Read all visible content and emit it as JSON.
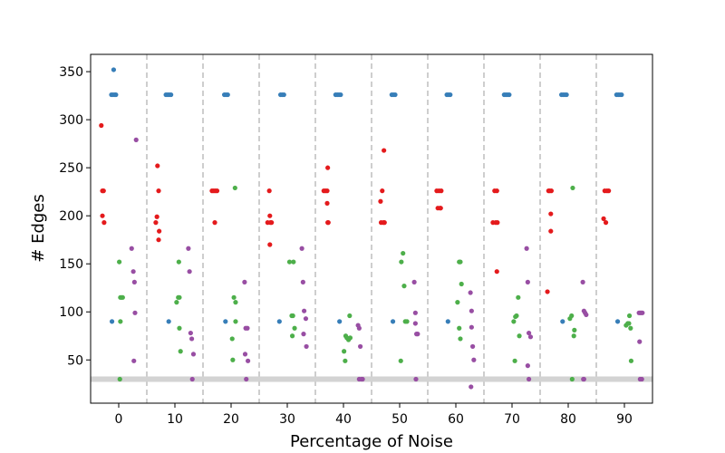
{
  "chart_data": {
    "type": "scatter",
    "title": "",
    "xlabel": "Percentage of Noise",
    "ylabel": "# Edges",
    "xlim": [
      -5,
      95
    ],
    "ylim": [
      5,
      368
    ],
    "x_ticks": [
      0,
      10,
      20,
      30,
      40,
      50,
      60,
      70,
      80,
      90
    ],
    "y_ticks": [
      50,
      100,
      150,
      200,
      250,
      300,
      350
    ],
    "group_separators": [
      5,
      15,
      25,
      35,
      45,
      55,
      65,
      75,
      85
    ],
    "reference_line_y": 30,
    "grid": false,
    "legend": "none",
    "series": [
      {
        "color": "#377eb8",
        "points": [
          [
            -1.3,
            326
          ],
          [
            -1,
            326
          ],
          [
            -0.9,
            352
          ],
          [
            -0.7,
            326
          ],
          [
            -0.5,
            326
          ],
          [
            -1.2,
            90
          ],
          [
            8.4,
            326
          ],
          [
            8.7,
            326
          ],
          [
            9.0,
            326
          ],
          [
            9.3,
            326
          ],
          [
            8.9,
            90
          ],
          [
            18.8,
            326
          ],
          [
            19.1,
            326
          ],
          [
            19.4,
            326
          ],
          [
            19.0,
            90
          ],
          [
            28.8,
            326
          ],
          [
            29.1,
            326
          ],
          [
            29.4,
            326
          ],
          [
            28.6,
            90
          ],
          [
            38.6,
            326
          ],
          [
            38.9,
            326
          ],
          [
            39.2,
            326
          ],
          [
            39.5,
            326
          ],
          [
            39.3,
            90
          ],
          [
            48.6,
            326
          ],
          [
            48.9,
            326
          ],
          [
            49.2,
            326
          ],
          [
            48.8,
            90
          ],
          [
            58.4,
            326
          ],
          [
            58.7,
            326
          ],
          [
            59.0,
            326
          ],
          [
            58.6,
            90
          ],
          [
            68.6,
            326
          ],
          [
            68.9,
            326
          ],
          [
            69.2,
            326
          ],
          [
            69.5,
            326
          ],
          [
            78.8,
            326
          ],
          [
            79.1,
            326
          ],
          [
            79.4,
            326
          ],
          [
            79.7,
            326
          ],
          [
            79.0,
            90
          ],
          [
            88.6,
            326
          ],
          [
            88.9,
            326
          ],
          [
            89.2,
            326
          ],
          [
            89.5,
            326
          ],
          [
            88.8,
            90
          ]
        ]
      },
      {
        "color": "#e41a1c",
        "points": [
          [
            -3.1,
            294
          ],
          [
            -2.9,
            226
          ],
          [
            -2.7,
            226
          ],
          [
            -2.9,
            200
          ],
          [
            -2.6,
            193
          ],
          [
            6.6,
            193
          ],
          [
            6.8,
            199
          ],
          [
            6.9,
            252
          ],
          [
            7.1,
            226
          ],
          [
            7.2,
            184
          ],
          [
            7.1,
            175
          ],
          [
            16.6,
            226
          ],
          [
            16.9,
            226
          ],
          [
            17.2,
            226
          ],
          [
            17.5,
            226
          ],
          [
            17.1,
            193
          ],
          [
            26.5,
            193
          ],
          [
            26.8,
            226
          ],
          [
            26.9,
            200
          ],
          [
            27.0,
            193
          ],
          [
            27.2,
            193
          ],
          [
            26.9,
            170
          ],
          [
            36.5,
            226
          ],
          [
            36.8,
            226
          ],
          [
            37.1,
            226
          ],
          [
            37.1,
            213
          ],
          [
            37.3,
            193
          ],
          [
            37.2,
            193
          ],
          [
            37.2,
            250
          ],
          [
            46.6,
            215
          ],
          [
            46.7,
            193
          ],
          [
            46.9,
            226
          ],
          [
            47.1,
            193
          ],
          [
            47.3,
            193
          ],
          [
            47.2,
            268
          ],
          [
            56.6,
            226
          ],
          [
            56.8,
            208
          ],
          [
            57.0,
            226
          ],
          [
            57.2,
            208
          ],
          [
            57.4,
            226
          ],
          [
            57.3,
            208
          ],
          [
            66.6,
            193
          ],
          [
            66.9,
            226
          ],
          [
            67.1,
            193
          ],
          [
            67.3,
            226
          ],
          [
            67.4,
            193
          ],
          [
            67.3,
            142
          ],
          [
            76.3,
            121
          ],
          [
            76.5,
            226
          ],
          [
            76.7,
            226
          ],
          [
            76.9,
            202
          ],
          [
            77.0,
            226
          ],
          [
            76.9,
            184
          ],
          [
            86.3,
            197
          ],
          [
            86.5,
            226
          ],
          [
            86.7,
            193
          ],
          [
            86.9,
            226
          ],
          [
            87.2,
            226
          ]
        ]
      },
      {
        "color": "#4daf4a",
        "points": [
          [
            0.1,
            152
          ],
          [
            0.3,
            115
          ],
          [
            0.5,
            115
          ],
          [
            0.7,
            115
          ],
          [
            0.3,
            90
          ],
          [
            0.2,
            30
          ],
          [
            10.3,
            110
          ],
          [
            10.6,
            115
          ],
          [
            10.8,
            115
          ],
          [
            10.7,
            152
          ],
          [
            10.8,
            83
          ],
          [
            11.0,
            59
          ],
          [
            20.3,
            50
          ],
          [
            20.5,
            115
          ],
          [
            20.8,
            110
          ],
          [
            20.7,
            229
          ],
          [
            20.2,
            72
          ],
          [
            20.8,
            90
          ],
          [
            30.4,
            152
          ],
          [
            30.8,
            96
          ],
          [
            31.0,
            96
          ],
          [
            31.1,
            152
          ],
          [
            31.3,
            83
          ],
          [
            30.9,
            75
          ],
          [
            40.1,
            59
          ],
          [
            40.4,
            75
          ],
          [
            40.6,
            73
          ],
          [
            40.9,
            71
          ],
          [
            41.1,
            96
          ],
          [
            40.3,
            49
          ],
          [
            41.2,
            73
          ],
          [
            50.3,
            152
          ],
          [
            50.6,
            161
          ],
          [
            50.8,
            127
          ],
          [
            51.0,
            90
          ],
          [
            51.3,
            90
          ],
          [
            50.2,
            49
          ],
          [
            60.3,
            110
          ],
          [
            60.6,
            152
          ],
          [
            60.8,
            152
          ],
          [
            61.0,
            129
          ],
          [
            60.8,
            72
          ],
          [
            60.6,
            83
          ],
          [
            70.3,
            90
          ],
          [
            70.6,
            95
          ],
          [
            70.8,
            96
          ],
          [
            71.1,
            115
          ],
          [
            71.3,
            75
          ],
          [
            70.5,
            49
          ],
          [
            80.3,
            93
          ],
          [
            80.6,
            96
          ],
          [
            80.8,
            229
          ],
          [
            81.1,
            81
          ],
          [
            81.0,
            75
          ],
          [
            80.7,
            30
          ],
          [
            90.3,
            86
          ],
          [
            90.6,
            88
          ],
          [
            90.9,
            96
          ],
          [
            91.1,
            83
          ],
          [
            91.2,
            49
          ],
          [
            90.8,
            88
          ]
        ]
      },
      {
        "color": "#984ea3",
        "points": [
          [
            2.3,
            166
          ],
          [
            2.6,
            142
          ],
          [
            2.8,
            131
          ],
          [
            3.1,
            279
          ],
          [
            2.9,
            99
          ],
          [
            2.7,
            49
          ],
          [
            12.4,
            166
          ],
          [
            12.6,
            142
          ],
          [
            12.8,
            78
          ],
          [
            13.0,
            72
          ],
          [
            13.3,
            56
          ],
          [
            13.1,
            30
          ],
          [
            22.4,
            131
          ],
          [
            22.6,
            83
          ],
          [
            22.9,
            83
          ],
          [
            22.5,
            56
          ],
          [
            22.7,
            30
          ],
          [
            23.0,
            49
          ],
          [
            32.6,
            166
          ],
          [
            32.8,
            131
          ],
          [
            33.0,
            101
          ],
          [
            33.3,
            93
          ],
          [
            33.4,
            64
          ],
          [
            32.9,
            77
          ],
          [
            42.6,
            86
          ],
          [
            42.8,
            83
          ],
          [
            43.0,
            64
          ],
          [
            43.2,
            30
          ],
          [
            43.4,
            30
          ],
          [
            42.8,
            30
          ],
          [
            52.6,
            131
          ],
          [
            52.8,
            99
          ],
          [
            53.0,
            77
          ],
          [
            53.2,
            77
          ],
          [
            52.8,
            88
          ],
          [
            52.9,
            30
          ],
          [
            62.6,
            120
          ],
          [
            62.8,
            101
          ],
          [
            63.0,
            64
          ],
          [
            63.2,
            50
          ],
          [
            62.8,
            84
          ],
          [
            62.7,
            22
          ],
          [
            72.6,
            166
          ],
          [
            72.8,
            131
          ],
          [
            73.0,
            78
          ],
          [
            73.3,
            74
          ],
          [
            72.8,
            44
          ],
          [
            73.0,
            30
          ],
          [
            82.6,
            131
          ],
          [
            82.8,
            101
          ],
          [
            83.0,
            99
          ],
          [
            83.2,
            97
          ],
          [
            82.7,
            30
          ],
          [
            82.8,
            30
          ],
          [
            92.6,
            99
          ],
          [
            92.8,
            99
          ],
          [
            93.0,
            99
          ],
          [
            93.2,
            99
          ],
          [
            92.7,
            69
          ],
          [
            92.8,
            30
          ],
          [
            93.1,
            30
          ]
        ]
      }
    ]
  }
}
